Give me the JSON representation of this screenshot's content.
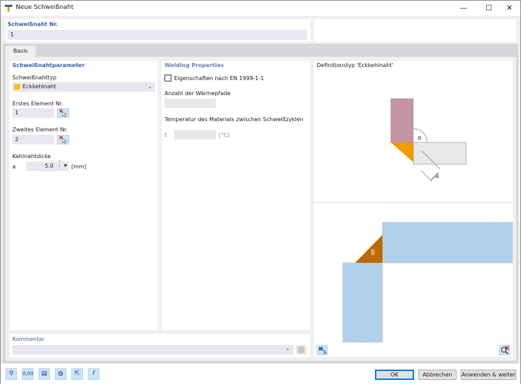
{
  "window": {
    "title": "Neue Schweißnaht",
    "minimize": "—",
    "maximize": "☐",
    "close": "✕"
  },
  "header": {
    "number_label": "Schweißnaht Nr.",
    "number_value": "1"
  },
  "tabs": [
    {
      "label": "Basis",
      "active": true
    }
  ],
  "params": {
    "heading": "Schweißnahtparameter",
    "type_label": "Schweißnahttyp",
    "type_value": "Eckkehlnaht",
    "type_color": "#f5c000",
    "first_label": "Erstes Element Nr.",
    "first_value": "1",
    "second_label": "Zweites Element Nr.",
    "second_value": "2",
    "thickness_label": "Kehlnahtdicke",
    "thickness_symbol": "a",
    "thickness_value": "5.0",
    "thickness_unit": "[mm]"
  },
  "welding": {
    "heading": "Welding Properties",
    "en_checkbox_label": "Eigenschaften nach EN 1999-1-1",
    "en_checked": false,
    "heat_paths_label": "Anzahl der Wärmepfade",
    "heat_paths_value": "",
    "temp_label": "Temperatur des Materials zwischen Schweißzyklen",
    "temp_symbol": "t",
    "temp_value": "",
    "temp_unit": "[°C]"
  },
  "definition": {
    "heading": "Definitionstyp 'Eckkehlnaht'",
    "alpha": "α",
    "a": "a",
    "weld_label": "1"
  },
  "comment": {
    "label": "Kommentar",
    "value": ""
  },
  "footer": {
    "ok": "OK",
    "cancel": "Abbrechen",
    "apply": "Anwenden & weiter"
  },
  "toolbar_icons": [
    "search-icon",
    "units-icon",
    "display-icon",
    "globe-icon",
    "select-icon",
    "formula-icon"
  ]
}
